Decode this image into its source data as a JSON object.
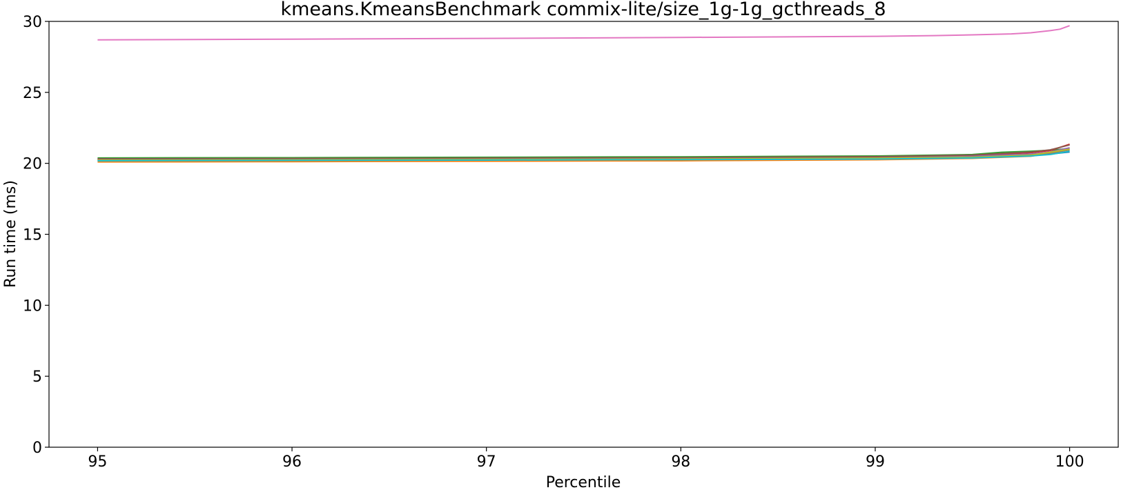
{
  "chart_data": {
    "type": "line",
    "title": "kmeans.KmeansBenchmark commix-lite/size_1g-1g_gcthreads_8",
    "xlabel": "Percentile",
    "ylabel": "Run time (ms)",
    "xlim": [
      94.75,
      100.25
    ],
    "ylim": [
      0,
      30
    ],
    "xticks": [
      95,
      96,
      97,
      98,
      99,
      100
    ],
    "yticks": [
      0,
      5,
      10,
      15,
      20,
      25,
      30
    ],
    "grid": false,
    "legend": "none",
    "series": [
      {
        "color": "#1f77b4",
        "x": [
          95,
          96,
          97,
          98,
          99,
          99.5,
          99.8,
          99.9,
          100
        ],
        "y": [
          20.2,
          20.22,
          20.25,
          20.28,
          20.32,
          20.4,
          20.55,
          20.65,
          20.8
        ]
      },
      {
        "color": "#ff7f0e",
        "x": [
          95,
          96,
          97,
          98,
          99,
          99.5,
          99.8,
          99.9,
          100
        ],
        "y": [
          20.1,
          20.12,
          20.15,
          20.18,
          20.25,
          20.35,
          20.5,
          20.7,
          20.95
        ]
      },
      {
        "color": "#2ca02c",
        "x": [
          95,
          96,
          97,
          98,
          99,
          99.5,
          99.65,
          99.8,
          99.9,
          100
        ],
        "y": [
          20.38,
          20.4,
          20.43,
          20.46,
          20.52,
          20.62,
          20.78,
          20.85,
          20.92,
          21.05
        ]
      },
      {
        "color": "#d62728",
        "x": [
          95,
          96,
          97,
          98,
          99,
          99.5,
          99.8,
          99.9,
          100
        ],
        "y": [
          20.3,
          20.32,
          20.35,
          20.38,
          20.45,
          20.55,
          20.75,
          20.9,
          21.35
        ]
      },
      {
        "color": "#9467bd",
        "x": [
          95,
          96,
          97,
          98,
          99,
          99.5,
          99.8,
          99.9,
          100
        ],
        "y": [
          20.28,
          20.3,
          20.33,
          20.36,
          20.42,
          20.5,
          20.65,
          20.8,
          21.1
        ]
      },
      {
        "color": "#8c564b",
        "x": [
          95,
          96,
          97,
          98,
          99,
          99.5,
          99.8,
          99.9,
          100
        ],
        "y": [
          20.32,
          20.34,
          20.37,
          20.4,
          20.47,
          20.58,
          20.8,
          20.95,
          21.3
        ]
      },
      {
        "color": "#e377c2",
        "x": [
          95,
          96,
          97,
          98,
          99,
          99.3,
          99.5,
          99.7,
          99.8,
          99.9,
          99.95,
          100
        ],
        "y": [
          28.7,
          28.75,
          28.8,
          28.87,
          28.95,
          29.0,
          29.05,
          29.12,
          29.2,
          29.35,
          29.45,
          29.7
        ]
      },
      {
        "color": "#7f7f7f",
        "x": [
          95,
          96,
          97,
          98,
          99,
          99.5,
          99.8,
          99.9,
          100
        ],
        "y": [
          20.25,
          20.27,
          20.3,
          20.33,
          20.38,
          20.45,
          20.6,
          20.72,
          20.95
        ]
      },
      {
        "color": "#bcbd22",
        "x": [
          95,
          96,
          97,
          98,
          99,
          99.5,
          99.8,
          99.9,
          100
        ],
        "y": [
          20.22,
          20.24,
          20.27,
          20.3,
          20.36,
          20.43,
          20.58,
          20.78,
          21.0
        ]
      },
      {
        "color": "#17becf",
        "x": [
          95,
          96,
          97,
          98,
          99,
          99.5,
          99.8,
          99.9,
          100
        ],
        "y": [
          20.18,
          20.2,
          20.23,
          20.26,
          20.3,
          20.38,
          20.52,
          20.62,
          20.85
        ]
      }
    ]
  }
}
